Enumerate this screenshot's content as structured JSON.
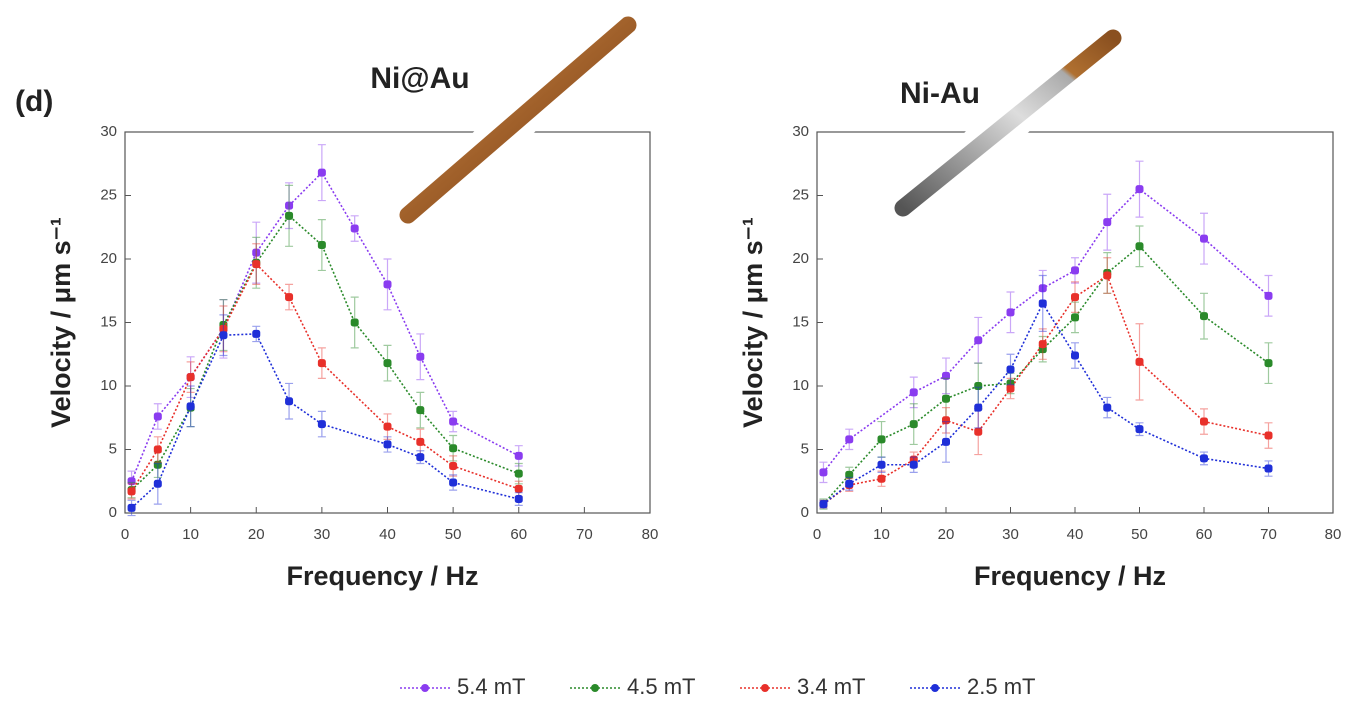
{
  "panel_label": "(d)",
  "chart_data": [
    {
      "type": "line",
      "title": "Ni@Au",
      "x_label": "Frequency / Hz",
      "y_label": "Velocity / μm s⁻¹",
      "xlim": [
        0,
        80
      ],
      "xticks": [
        0,
        10,
        20,
        30,
        40,
        50,
        60,
        70,
        80
      ],
      "ylim": [
        0,
        30
      ],
      "yticks": [
        0,
        5,
        10,
        15,
        20,
        25,
        30
      ],
      "series": [
        {
          "name": "5.4 mT",
          "color": "#8a3cf0",
          "x": [
            1,
            5,
            10,
            15,
            20,
            25,
            30,
            35,
            40,
            45,
            50,
            60
          ],
          "values": [
            2.5,
            7.6,
            10.7,
            14.5,
            20.5,
            24.2,
            26.8,
            22.4,
            18,
            12.3,
            7.2,
            4.5
          ],
          "errors": [
            0.8,
            1,
            1.6,
            2.3,
            2.4,
            1.8,
            2.2,
            1,
            2,
            1.8,
            0.8,
            0.8
          ]
        },
        {
          "name": "4.5 mT",
          "color": "#2a8a2a",
          "x": [
            1,
            5,
            10,
            15,
            20,
            25,
            30,
            35,
            40,
            45,
            50,
            60
          ],
          "values": [
            1.8,
            3.8,
            8.3,
            14.8,
            19.7,
            23.4,
            21.1,
            15,
            11.8,
            8.1,
            5.1,
            3.1
          ],
          "errors": [
            0.6,
            1,
            1.5,
            2,
            2,
            2.4,
            2,
            2,
            1.4,
            1.4,
            1,
            0.8
          ]
        },
        {
          "name": "3.4 mT",
          "color": "#e8302a",
          "x": [
            1,
            5,
            10,
            15,
            20,
            25,
            30,
            40,
            45,
            50,
            60
          ],
          "values": [
            1.7,
            5,
            10.7,
            14.5,
            19.6,
            17,
            11.8,
            6.8,
            5.6,
            3.7,
            1.9
          ],
          "errors": [
            0.6,
            1,
            1.2,
            1.8,
            1.6,
            1,
            1.2,
            1,
            1,
            0.8,
            0.6
          ]
        },
        {
          "name": "2.5 mT",
          "color": "#1f2fd8",
          "x": [
            1,
            5,
            10,
            15,
            20,
            25,
            30,
            40,
            45,
            50,
            60
          ],
          "values": [
            0.4,
            2.3,
            8.4,
            14,
            14.1,
            8.8,
            7,
            5.4,
            4.4,
            2.4,
            1.1
          ],
          "errors": [
            0.6,
            1.6,
            1.6,
            1.6,
            0.6,
            1.4,
            1,
            0.6,
            0.5,
            0.6,
            0.5
          ]
        }
      ]
    },
    {
      "type": "line",
      "title": "Ni-Au",
      "x_label": "Frequency / Hz",
      "y_label": "Velocity / μm s⁻¹",
      "xlim": [
        0,
        80
      ],
      "xticks": [
        0,
        10,
        20,
        30,
        40,
        50,
        60,
        70,
        80
      ],
      "ylim": [
        0,
        30
      ],
      "yticks": [
        0,
        5,
        10,
        15,
        20,
        25,
        30
      ],
      "series": [
        {
          "color": "#8a3cf0",
          "x": [
            1,
            5,
            15,
            20,
            25,
            30,
            35,
            40,
            45,
            50,
            60,
            70
          ],
          "values": [
            3.2,
            5.8,
            9.5,
            10.8,
            13.6,
            15.8,
            17.7,
            19.1,
            22.9,
            25.5,
            21.6,
            17.1
          ],
          "errors": [
            0.8,
            0.8,
            1.2,
            1.4,
            1.8,
            1.6,
            1.4,
            1,
            2.2,
            2.2,
            2,
            1.6
          ]
        },
        {
          "color": "#2a8a2a",
          "x": [
            1,
            5,
            10,
            15,
            20,
            25,
            30,
            35,
            40,
            45,
            50,
            60,
            70
          ],
          "values": [
            0.7,
            3,
            5.8,
            7,
            9,
            10,
            10.2,
            12.9,
            15.4,
            18.9,
            21,
            15.5,
            11.8
          ],
          "errors": [
            0.4,
            0.6,
            1.4,
            1.6,
            1.6,
            1.8,
            0.8,
            1,
            1.2,
            1.6,
            1.6,
            1.8,
            1.6
          ]
        },
        {
          "color": "#e8302a",
          "x": [
            1,
            5,
            10,
            15,
            20,
            25,
            30,
            35,
            40,
            45,
            50,
            60,
            70
          ],
          "values": [
            0.7,
            2.2,
            2.7,
            4.2,
            7.3,
            6.4,
            9.8,
            13.3,
            17,
            18.7,
            11.9,
            7.2,
            6.1
          ],
          "errors": [
            0.3,
            0.5,
            0.6,
            0.6,
            1,
            1.8,
            0.8,
            1.2,
            1.2,
            1.4,
            3,
            1,
            1
          ]
        },
        {
          "color": "#1f2fd8",
          "x": [
            1,
            5,
            10,
            15,
            20,
            25,
            30,
            35,
            40,
            45,
            50,
            60,
            70
          ],
          "values": [
            0.7,
            2.3,
            3.8,
            3.8,
            5.6,
            8.3,
            11.3,
            16.5,
            12.4,
            8.3,
            6.6,
            4.3,
            3.5
          ],
          "errors": [
            0.3,
            0.5,
            0.6,
            0.6,
            1.6,
            1.6,
            1.2,
            2.2,
            1,
            0.8,
            0.5,
            0.5,
            0.6
          ]
        }
      ]
    }
  ]
}
